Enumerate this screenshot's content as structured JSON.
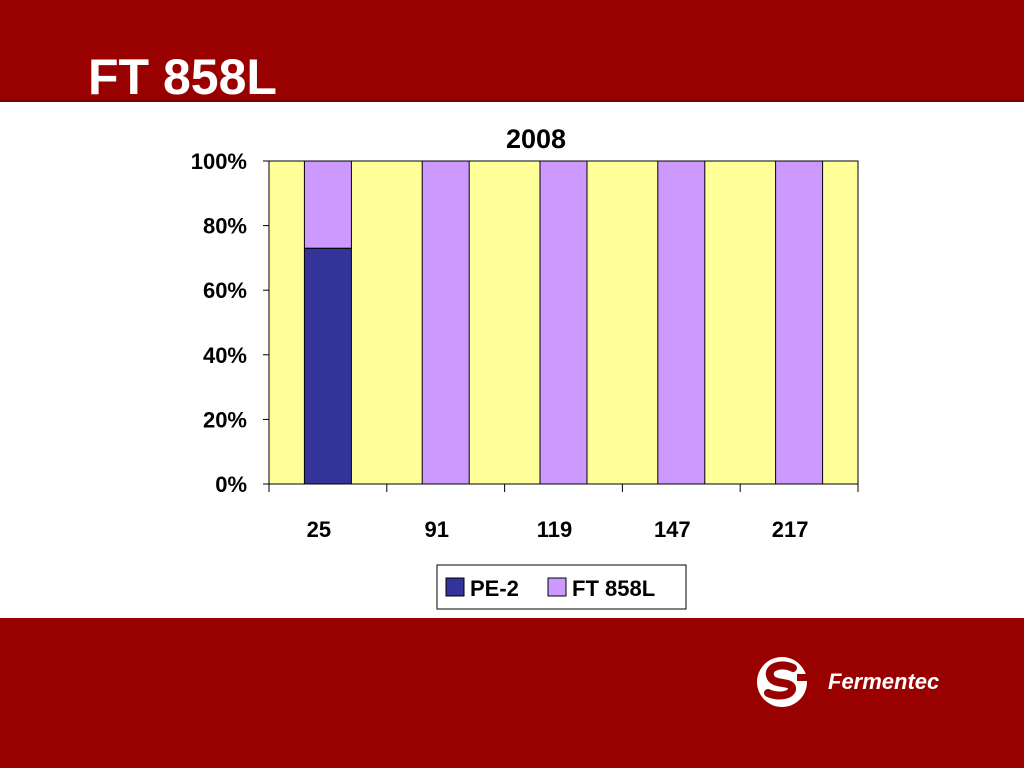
{
  "slide": {
    "title": "FT 858L"
  },
  "logo": {
    "name": "Fermentec",
    "icon": "fermentec-s-logo-icon"
  },
  "colors": {
    "band": "#990000",
    "plot_bg": "#ffff99",
    "pe2": "#333399",
    "ft858l": "#cc99ff"
  },
  "chart_data": {
    "type": "bar",
    "stacked": true,
    "percent": true,
    "title": "2008",
    "xlabel": "",
    "ylabel": "",
    "categories": [
      "25",
      "91",
      "119",
      "147",
      "217"
    ],
    "series": [
      {
        "name": "PE-2",
        "color": "#333399",
        "values": [
          73,
          0,
          0,
          0,
          0
        ]
      },
      {
        "name": "FT 858L",
        "color": "#cc99ff",
        "values": [
          27,
          100,
          100,
          100,
          100
        ]
      }
    ],
    "ylim": [
      0,
      100
    ],
    "yticks": [
      "0%",
      "20%",
      "40%",
      "60%",
      "80%",
      "100%"
    ],
    "grid": false,
    "legend": "bottom"
  }
}
